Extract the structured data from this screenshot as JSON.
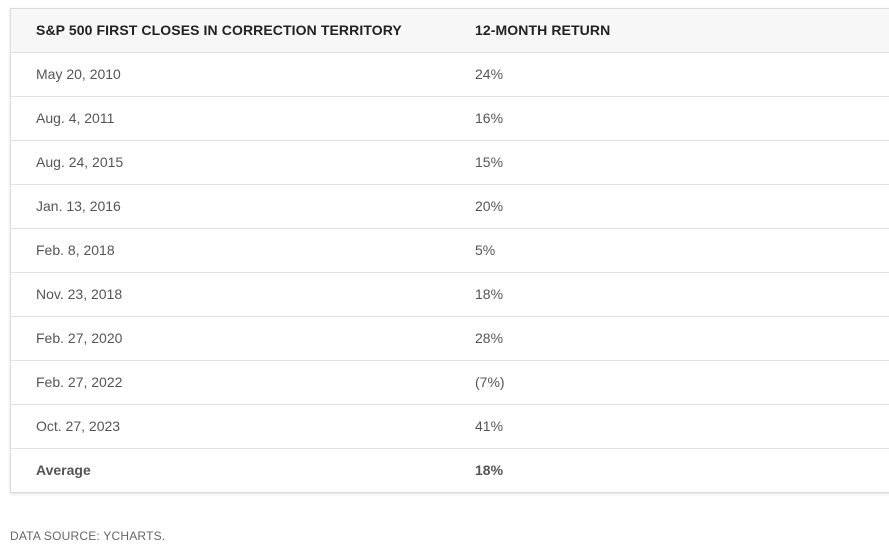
{
  "table": {
    "headers": [
      "S&P 500 FIRST CLOSES IN CORRECTION TERRITORY",
      "12-MONTH RETURN"
    ],
    "rows": [
      {
        "date": "May 20, 2010",
        "return": "24%"
      },
      {
        "date": "Aug. 4, 2011",
        "return": "16%"
      },
      {
        "date": "Aug. 24, 2015",
        "return": "15%"
      },
      {
        "date": "Jan. 13, 2016",
        "return": "20%"
      },
      {
        "date": "Feb. 8, 2018",
        "return": "5%"
      },
      {
        "date": "Nov. 23, 2018",
        "return": "18%"
      },
      {
        "date": "Feb. 27, 2020",
        "return": "28%"
      },
      {
        "date": "Feb. 27, 2022",
        "return": "(7%)"
      },
      {
        "date": "Oct. 27, 2023",
        "return": "41%"
      }
    ],
    "average": {
      "label": "Average",
      "return": "18%"
    }
  },
  "footer": {
    "source": "DATA SOURCE: YCHARTS."
  }
}
